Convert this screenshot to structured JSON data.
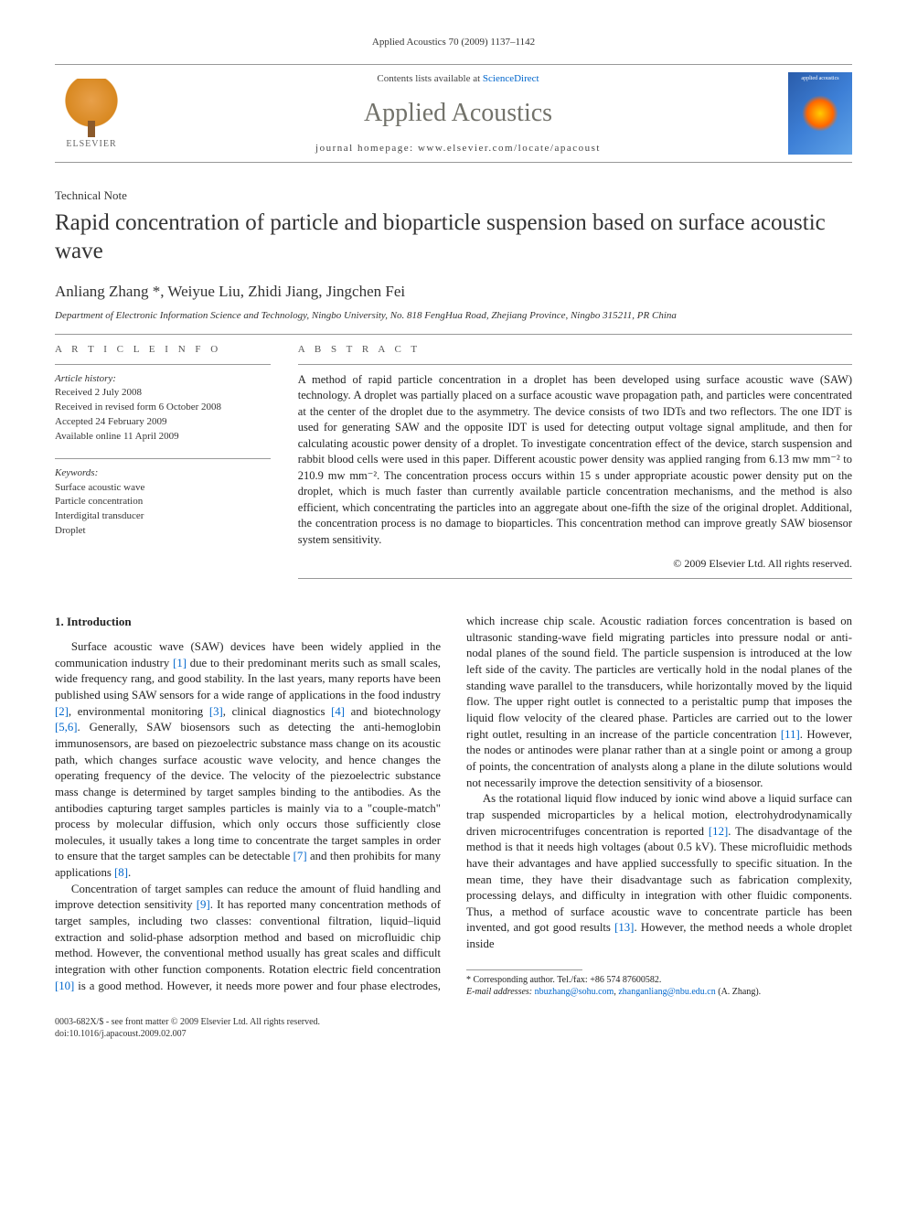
{
  "running_header": "Applied Acoustics 70 (2009) 1137–1142",
  "topbar": {
    "contents_prefix": "Contents lists available at ",
    "contents_link": "ScienceDirect",
    "journal_title": "Applied Acoustics",
    "homepage_prefix": "journal homepage: ",
    "homepage_url": "www.elsevier.com/locate/apacoust",
    "publisher": "ELSEVIER",
    "cover_text": "applied acoustics"
  },
  "article": {
    "type": "Technical Note",
    "title": "Rapid concentration of particle and bioparticle suspension based on surface acoustic wave",
    "authors": "Anliang Zhang *, Weiyue Liu, Zhidi Jiang, Jingchen Fei",
    "affiliation": "Department of Electronic Information Science and Technology, Ningbo University, No. 818 FengHua Road, Zhejiang Province, Ningbo 315211, PR China"
  },
  "info": {
    "heading": "A R T I C L E   I N F O",
    "history_label": "Article history:",
    "history": [
      "Received 2 July 2008",
      "Received in revised form 6 October 2008",
      "Accepted 24 February 2009",
      "Available online 11 April 2009"
    ],
    "keywords_label": "Keywords:",
    "keywords": [
      "Surface acoustic wave",
      "Particle concentration",
      "Interdigital transducer",
      "Droplet"
    ]
  },
  "abstract": {
    "heading": "A B S T R A C T",
    "text": "A method of rapid particle concentration in a droplet has been developed using surface acoustic wave (SAW) technology. A droplet was partially placed on a surface acoustic wave propagation path, and particles were concentrated at the center of the droplet due to the asymmetry. The device consists of two IDTs and two reflectors. The one IDT is used for generating SAW and the opposite IDT is used for detecting output voltage signal amplitude, and then for calculating acoustic power density of a droplet. To investigate concentration effect of the device, starch suspension and rabbit blood cells were used in this paper. Different acoustic power density was applied ranging from 6.13 mw mm⁻² to 210.9 mw mm⁻². The concentration process occurs within 15 s under appropriate acoustic power density put on the droplet, which is much faster than currently available particle concentration mechanisms, and the method is also efficient, which concentrating the particles into an aggregate about one-fifth the size of the original droplet. Additional, the concentration process is no damage to bioparticles. This concentration method can improve greatly SAW biosensor system sensitivity.",
    "copyright": "© 2009 Elsevier Ltd. All rights reserved."
  },
  "body": {
    "section1_heading": "1. Introduction",
    "p1a": "Surface acoustic wave (SAW) devices have been widely applied in the communication industry ",
    "p1b": " due to their predominant merits such as small scales, wide frequency rang, and good stability. In the last years, many reports have been published using SAW sensors for a wide range of applications in the food industry ",
    "p1c": ", environmental monitoring ",
    "p1d": ", clinical diagnostics ",
    "p1e": " and biotechnology ",
    "p1f": ". Generally, SAW biosensors such as detecting the anti-hemoglobin immunosensors, are based on piezoelectric substance mass change on its acoustic path, which changes surface acoustic wave velocity, and hence changes the operating frequency of the device. The velocity of the piezoelectric substance mass change is determined by target samples binding to the antibodies. As the antibodies capturing target samples particles is mainly via to a \"couple-match\" process by molecular diffusion, which only occurs those sufficiently close molecules, it usually takes a long time to concentrate the target samples in order to ensure that the target samples can be detectable ",
    "p1g": " and then prohibits for many applications ",
    "p1h": ".",
    "p2a": "Concentration of target samples can reduce the amount of fluid handling and improve detection sensitivity ",
    "p2b": ". It has reported many concentration methods of target samples, including two classes: conventional filtration, liquid–liquid extraction and solid-phase adsorption method and based on microfluidic chip method. ",
    "p2c": "However, the conventional method usually has great scales and difficult integration with other function components. Rotation electric field concentration ",
    "p2d": " is a good method. However, it needs more power and four phase electrodes, which increase chip scale. Acoustic radiation forces concentration is based on ultrasonic standing-wave field migrating particles into pressure nodal or anti-nodal planes of the sound field. The particle suspension is introduced at the low left side of the cavity. The particles are vertically hold in the nodal planes of the standing wave parallel to the transducers, while horizontally moved by the liquid flow. The upper right outlet is connected to a peristaltic pump that imposes the liquid flow velocity of the cleared phase. Particles are carried out to the lower right outlet, resulting in an increase of the particle concentration ",
    "p2e": ". However, the nodes or antinodes were planar rather than at a single point or among a group of points, the concentration of analysts along a plane in the dilute solutions would not necessarily improve the detection sensitivity of a biosensor.",
    "p3a": "As the rotational liquid flow induced by ionic wind above a liquid surface can trap suspended microparticles by a helical motion, electrohydrodynamically driven microcentrifuges concentration is reported ",
    "p3b": ". The disadvantage of the method is that it needs high voltages (about 0.5 kV). These microfluidic methods have their advantages and have applied successfully to specific situation. In the mean time, they have their disadvantage such as fabrication complexity, processing delays, and difficulty in integration with other fluidic components. Thus, a method of surface acoustic wave to concentrate particle has been invented, and got good results ",
    "p3c": ". However, the method needs a whole droplet inside",
    "refs": {
      "r1": "[1]",
      "r2": "[2]",
      "r3": "[3]",
      "r4": "[4]",
      "r56": "[5,6]",
      "r7": "[7]",
      "r8": "[8]",
      "r9": "[9]",
      "r10": "[10]",
      "r11": "[11]",
      "r12": "[12]",
      "r13": "[13]"
    }
  },
  "footnote": {
    "corr": "* Corresponding author. Tel./fax: +86 574 87600582.",
    "email_label": "E-mail addresses: ",
    "email1": "nbuzhang@sohu.com",
    "email_sep": ", ",
    "email2": "zhanganliang@nbu.edu.cn",
    "email_tail": " (A. Zhang)."
  },
  "bottom": {
    "line1": "0003-682X/$ - see front matter © 2009 Elsevier Ltd. All rights reserved.",
    "line2": "doi:10.1016/j.apacoust.2009.02.007"
  },
  "colors": {
    "link": "#0066cc",
    "journal_title": "#72726a",
    "text": "#222222",
    "rule": "#999999"
  }
}
